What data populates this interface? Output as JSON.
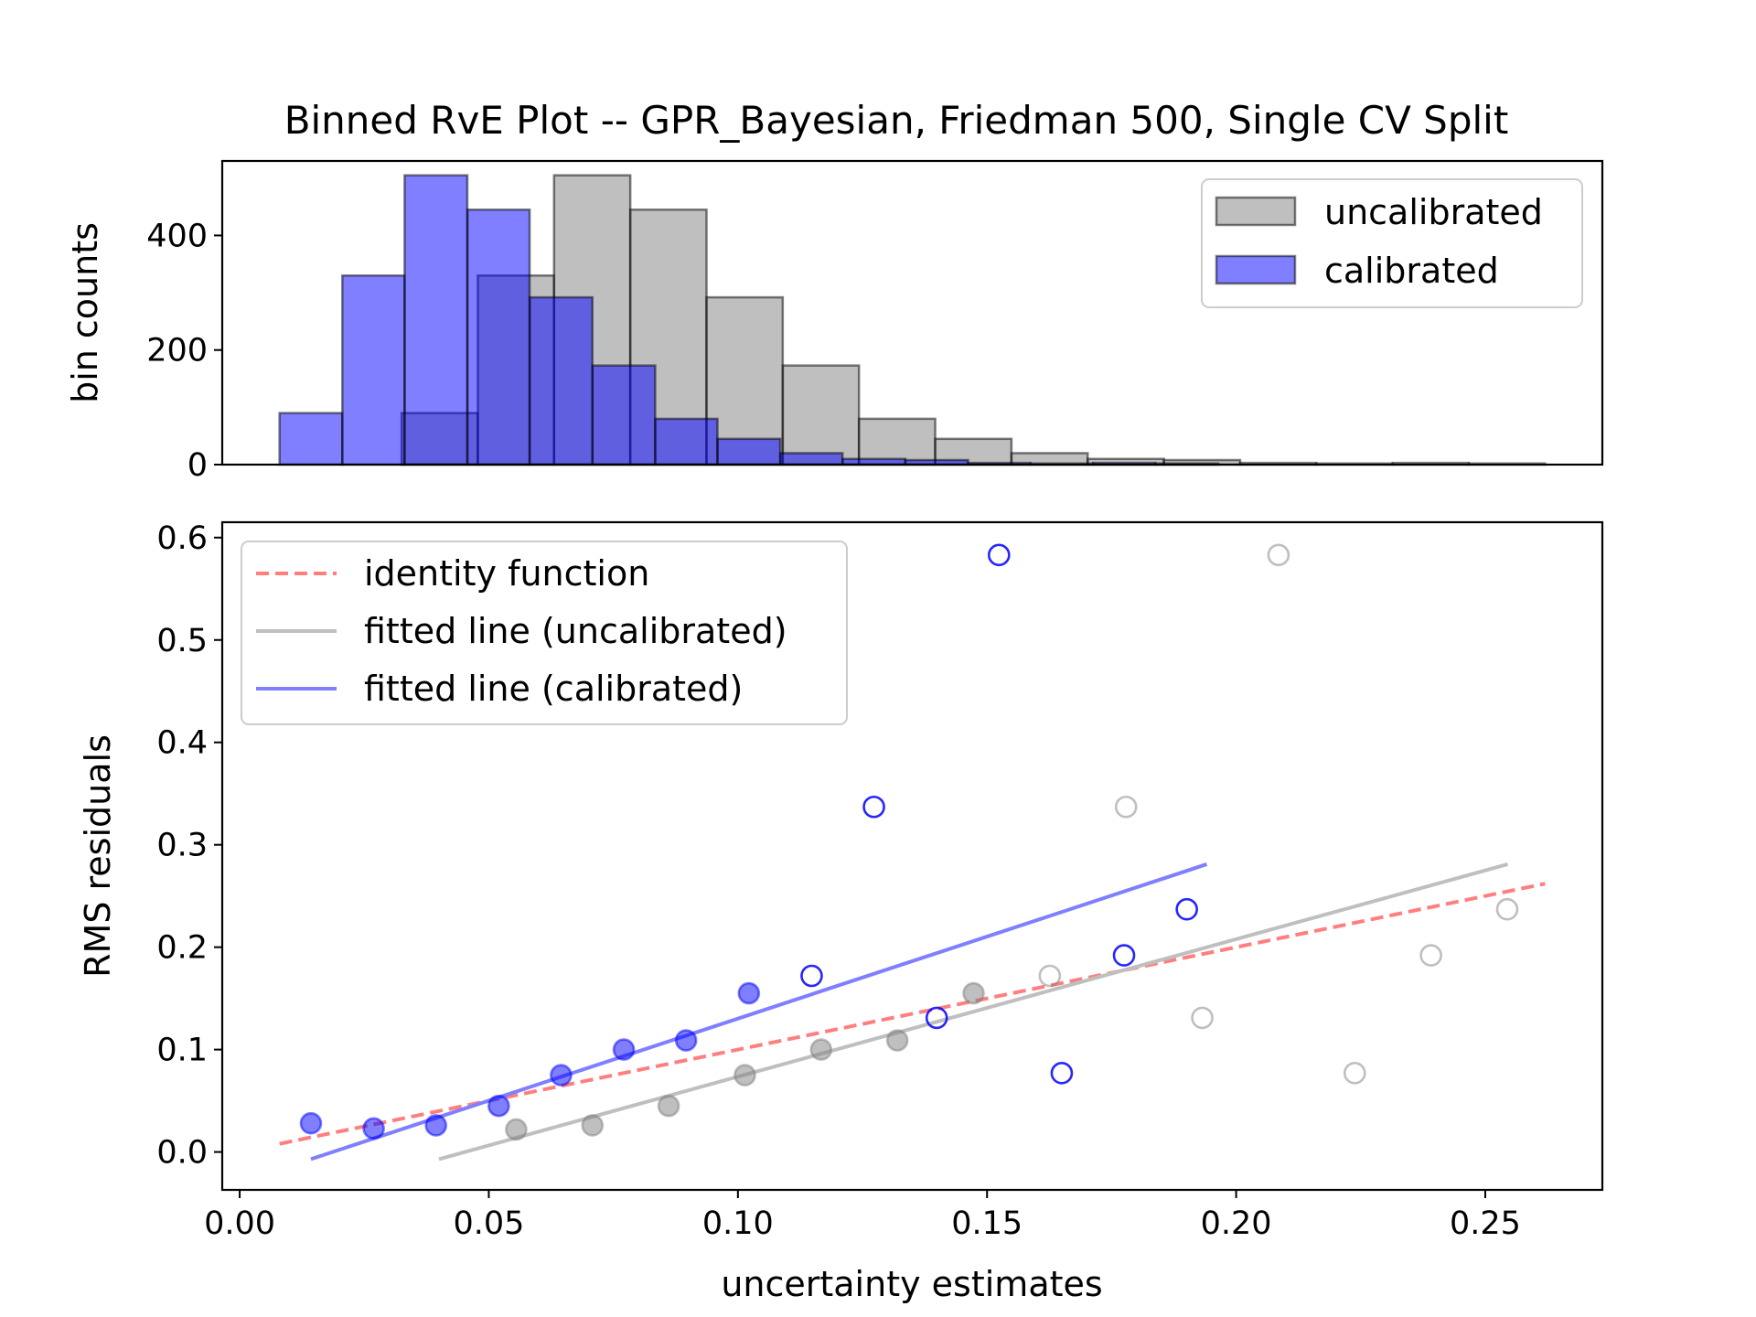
{
  "chart_data": [
    {
      "type": "bar",
      "title": "Binned RvE Plot -- GPR_Bayesian, Friedman 500, Single CV Split",
      "xlabel": "",
      "ylabel": "bin counts",
      "ylim": [
        0,
        530
      ],
      "yticks": [
        0,
        200,
        400
      ],
      "ytick_labels": [
        "0",
        "200",
        "400"
      ],
      "xlim": [
        -0.0035,
        0.2735
      ],
      "legend": {
        "placement": "top-right",
        "entries": [
          "uncalibrated",
          "calibrated"
        ]
      },
      "grid": false,
      "series": [
        {
          "name": "uncalibrated",
          "color": "#808080",
          "edges": [
            0.0325,
            0.0478,
            0.0631,
            0.0784,
            0.0937,
            0.109,
            0.1243,
            0.1396,
            0.1549,
            0.1702,
            0.1855,
            0.2008,
            0.2161,
            0.2314,
            0.2467,
            0.262
          ],
          "counts": [
            90,
            330,
            505,
            445,
            292,
            173,
            80,
            45,
            20,
            10,
            8,
            3,
            2,
            3,
            2
          ]
        },
        {
          "name": "calibrated",
          "color": "#0000ff",
          "edges": [
            0.008,
            0.0206,
            0.0331,
            0.0457,
            0.0582,
            0.0708,
            0.0834,
            0.0959,
            0.1085,
            0.121,
            0.1336,
            0.1462,
            0.1587,
            0.1713,
            0.1838,
            0.1964
          ],
          "counts": [
            90,
            330,
            505,
            445,
            292,
            173,
            80,
            45,
            20,
            10,
            8,
            3,
            2,
            3,
            2
          ]
        }
      ]
    },
    {
      "type": "scatter",
      "title": "",
      "xlabel": "uncertainty estimates",
      "ylabel": "RMS residuals",
      "xlim": [
        -0.0035,
        0.2735
      ],
      "ylim": [
        -0.037,
        0.615
      ],
      "xticks": [
        0.0,
        0.05,
        0.1,
        0.15,
        0.2,
        0.25
      ],
      "xtick_labels": [
        "0.00",
        "0.05",
        "0.10",
        "0.15",
        "0.20",
        "0.25"
      ],
      "yticks": [
        0.0,
        0.1,
        0.2,
        0.3,
        0.4,
        0.5,
        0.6
      ],
      "ytick_labels": [
        "0.0",
        "0.1",
        "0.2",
        "0.3",
        "0.4",
        "0.5",
        "0.6"
      ],
      "legend": {
        "placement": "top-left",
        "entries": [
          "identity function",
          "fitted line (uncalibrated)",
          "fitted line (calibrated)"
        ]
      },
      "grid": false,
      "series": [
        {
          "name": "uncalibrated",
          "color": "#808080",
          "x": [
            0.0555,
            0.0708,
            0.0861,
            0.1014,
            0.1167,
            0.132,
            0.1473,
            0.1626,
            0.1779,
            0.1932,
            0.2085,
            0.2238,
            0.2391,
            0.2544
          ],
          "y": [
            0.022,
            0.026,
            0.045,
            0.075,
            0.1,
            0.109,
            0.155,
            0.172,
            0.337,
            0.131,
            0.583,
            0.077,
            0.192,
            0.237
          ],
          "filled": [
            true,
            true,
            true,
            true,
            true,
            true,
            true,
            false,
            false,
            false,
            false,
            false,
            false,
            false
          ]
        },
        {
          "name": "calibrated",
          "color": "#0000ff",
          "x": [
            0.0143,
            0.0269,
            0.0394,
            0.052,
            0.0645,
            0.0771,
            0.0896,
            0.1022,
            0.1148,
            0.1273,
            0.1399,
            0.1524,
            0.165,
            0.1775,
            0.1901
          ],
          "y": [
            0.028,
            0.023,
            0.026,
            0.045,
            0.075,
            0.1,
            0.109,
            0.155,
            0.172,
            0.337,
            0.131,
            0.583,
            0.077,
            0.192,
            0.237
          ],
          "filled": [
            true,
            true,
            true,
            true,
            true,
            true,
            true,
            true,
            false,
            false,
            false,
            false,
            false,
            false,
            false
          ]
        }
      ],
      "lines": [
        {
          "name": "identity function",
          "color": "#ff7f7f",
          "style": "dashed",
          "x": [
            0.008,
            0.262
          ],
          "y": [
            0.008,
            0.262
          ]
        },
        {
          "name": "fitted line (uncalibrated)",
          "color": "#bfbfbf",
          "style": "solid",
          "x": [
            0.04,
            0.2545
          ],
          "y": [
            -0.007,
            0.281
          ]
        },
        {
          "name": "fitted line (calibrated)",
          "color": "#7f7fff",
          "style": "solid",
          "x": [
            0.0143,
            0.1941
          ],
          "y": [
            -0.007,
            0.281
          ]
        }
      ]
    }
  ]
}
